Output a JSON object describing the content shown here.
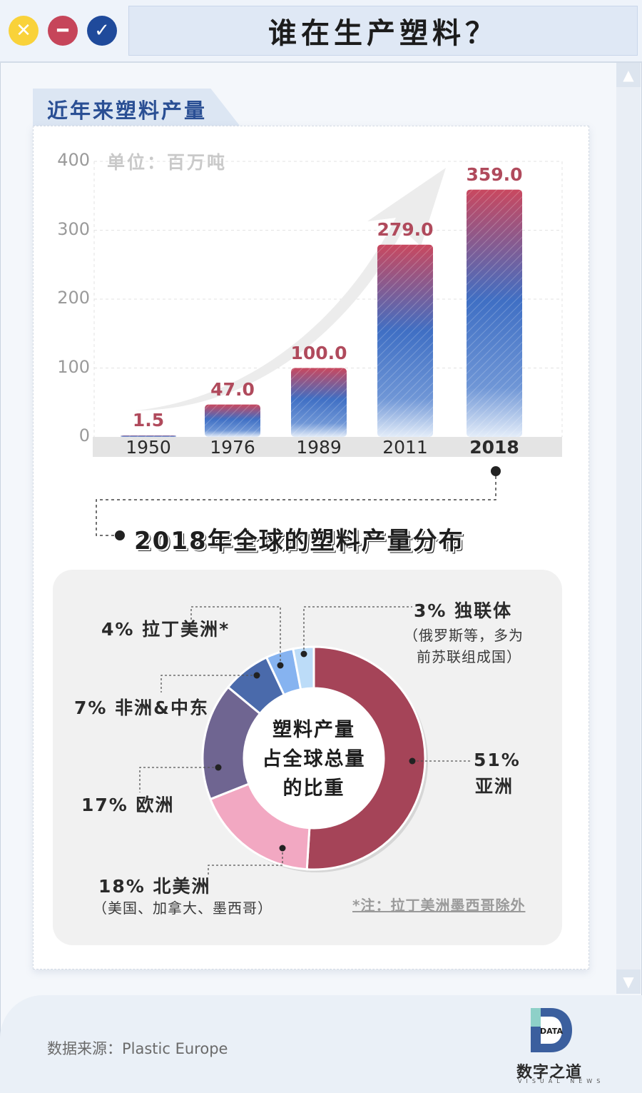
{
  "window": {
    "title": "谁在生产塑料？",
    "buttons": {
      "close": "✕",
      "minimize": "━",
      "confirm": "✓"
    }
  },
  "colors": {
    "bar_top_red": "#c9485f",
    "bar_mid_blue": "#3f6fc4",
    "asia": "#a54458",
    "north_america": "#f2a8c2",
    "europe": "#6f6591",
    "africa_middle_east": "#4a6aab",
    "latin_america": "#86b3f0",
    "cis": "#bcdcf8"
  },
  "section": {
    "title": "近年来塑料产量"
  },
  "chart_data": [
    {
      "type": "bar",
      "title": "近年来塑料产量",
      "unit_label": "单位：百万吨",
      "categories": [
        "1950",
        "1976",
        "1989",
        "2011",
        "2018"
      ],
      "values": [
        1.5,
        47.0,
        100.0,
        279.0,
        359.0
      ],
      "value_labels": [
        "1.5",
        "47.0",
        "100.0",
        "279.0",
        "359.0"
      ],
      "y_ticks": [
        "0",
        "100",
        "200",
        "300",
        "400"
      ],
      "ylim": [
        0,
        400
      ],
      "highlight_category": "2018",
      "grid": true
    },
    {
      "type": "pie",
      "title": "2018年全球的塑料产量分布",
      "center_text": [
        "塑料产量",
        "占全球总量",
        "的比重"
      ],
      "slices": [
        {
          "label": "亚洲",
          "value": 51,
          "pct": "51%",
          "color": "#a54458"
        },
        {
          "label": "北美洲",
          "value": 18,
          "pct": "18%",
          "color": "#f2a8c2",
          "note": "（美国、加拿大、墨西哥）"
        },
        {
          "label": "欧洲",
          "value": 17,
          "pct": "17%",
          "color": "#6f6591"
        },
        {
          "label": "非洲&中东",
          "value": 7,
          "pct": "7%",
          "color": "#4a6aab"
        },
        {
          "label": "拉丁美洲*",
          "value": 4,
          "pct": "4%",
          "color": "#86b3f0"
        },
        {
          "label": "独联体",
          "value": 3,
          "pct": "3%",
          "color": "#bcdcf8",
          "note": [
            "（俄罗斯等，多为",
            "前苏联组成国）"
          ]
        }
      ]
    }
  ],
  "distribution": {
    "title": "2018年全球的塑料产量分布"
  },
  "donut": {
    "center_line1": "塑料产量",
    "center_line2": "占全球总量",
    "center_line3": "的比重",
    "labels": {
      "asia_pct": "51%",
      "asia": "亚洲",
      "north_america": "18% 北美洲",
      "north_america_note": "（美国、加拿大、墨西哥）",
      "europe": "17% 欧洲",
      "africa_me": "7% 非洲&中东",
      "latin_america": "4% 拉丁美洲*",
      "cis": "3% 独联体",
      "cis_note_1": "（俄罗斯等，多为",
      "cis_note_2": "前苏联组成国）"
    },
    "footnote": "*注：拉丁美洲墨西哥除外"
  },
  "footer": {
    "source": "数据来源：Plastic Europe",
    "logo_mark": "DATA",
    "logo_text": "数字之道",
    "logo_sub": "VISUAL NEWS"
  },
  "scrollbar": {
    "up": "▲",
    "down": "▼"
  }
}
